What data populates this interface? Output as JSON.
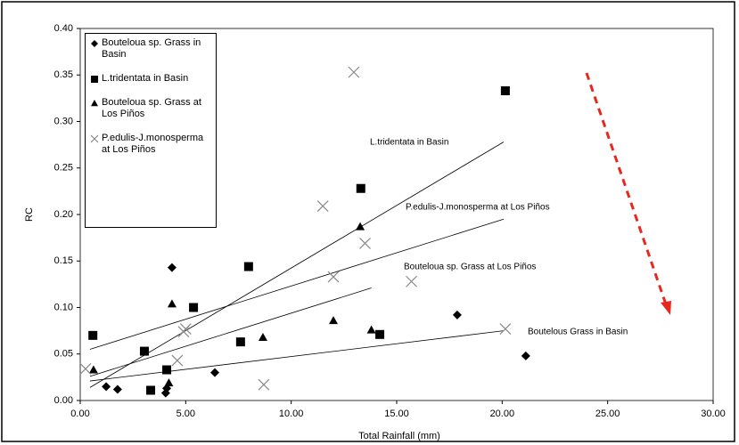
{
  "chart_data": {
    "type": "scatter",
    "xlabel": "Total Rainfall (mm)",
    "ylabel": "RC",
    "xlim": [
      0,
      30
    ],
    "ylim": [
      0,
      0.4
    ],
    "xticks": [
      {
        "value": 0,
        "label": "0.00"
      },
      {
        "value": 5,
        "label": "5.00"
      },
      {
        "value": 10,
        "label": "10.00"
      },
      {
        "value": 15,
        "label": "15.00"
      },
      {
        "value": 20,
        "label": "20.00"
      },
      {
        "value": 25,
        "label": "25.00"
      },
      {
        "value": 30,
        "label": "30.00"
      }
    ],
    "yticks": [
      {
        "value": 0,
        "label": "0.00"
      },
      {
        "value": 0.05,
        "label": "0.05"
      },
      {
        "value": 0.1,
        "label": "0.10"
      },
      {
        "value": 0.15,
        "label": "0.15"
      },
      {
        "value": 0.2,
        "label": "0.20"
      },
      {
        "value": 0.25,
        "label": "0.25"
      },
      {
        "value": 0.3,
        "label": "0.30"
      },
      {
        "value": 0.35,
        "label": "0.35"
      },
      {
        "value": 0.4,
        "label": "0.40"
      }
    ],
    "series": [
      {
        "name": "Bouteloua sp. Grass in Basin",
        "marker": "diamond",
        "color": "#000000",
        "x": [
          1.23,
          1.77,
          4.35,
          4.05,
          4.1,
          6.38,
          17.87,
          21.12
        ],
        "values": [
          0.015,
          0.012,
          0.143,
          0.008,
          0.013,
          0.03,
          0.092,
          0.048
        ]
      },
      {
        "name": "L.tridentata in Basin",
        "marker": "square",
        "color": "#000000",
        "x": [
          0.6,
          3.04,
          3.34,
          4.1,
          5.37,
          7.6,
          7.98,
          13.3,
          14.2,
          20.15
        ],
        "values": [
          0.07,
          0.053,
          0.011,
          0.033,
          0.1,
          0.063,
          0.144,
          0.228,
          0.071,
          0.333
        ]
      },
      {
        "name": "Bouteloua sp. Grass at Los Piños",
        "marker": "triangle",
        "color": "#000000",
        "x": [
          0.63,
          4.35,
          4.2,
          8.66,
          12.0,
          13.27,
          13.8
        ],
        "values": [
          0.033,
          0.104,
          0.019,
          0.068,
          0.086,
          0.187,
          0.076
        ]
      },
      {
        "name": "P.edulis-J.monosperma at Los Piños",
        "marker": "x",
        "color": "#888888",
        "x": [
          0.25,
          4.9,
          5.0,
          4.6,
          8.7,
          11.5,
          12.0,
          12.97,
          13.5,
          15.7,
          20.15
        ],
        "values": [
          0.034,
          0.074,
          0.077,
          0.043,
          0.017,
          0.209,
          0.133,
          0.353,
          0.169,
          0.128,
          0.077
        ]
      }
    ],
    "trendlines": [
      {
        "label": "L.tridentata in Basin",
        "x": [
          0.46,
          20.07
        ],
        "values": [
          0.014,
          0.278
        ]
      },
      {
        "label": "P.edulis-J.monosperma at Los Piños",
        "x": [
          0.46,
          20.07
        ],
        "values": [
          0.055,
          0.195
        ]
      },
      {
        "label": "Bouteloua sp. Grass at Los Piños",
        "x": [
          0.46,
          13.8
        ],
        "values": [
          0.026,
          0.121
        ]
      },
      {
        "label": "Boutelous Grass in Basin",
        "x": [
          0.46,
          20.07
        ],
        "values": [
          0.021,
          0.075
        ]
      }
    ]
  }
}
